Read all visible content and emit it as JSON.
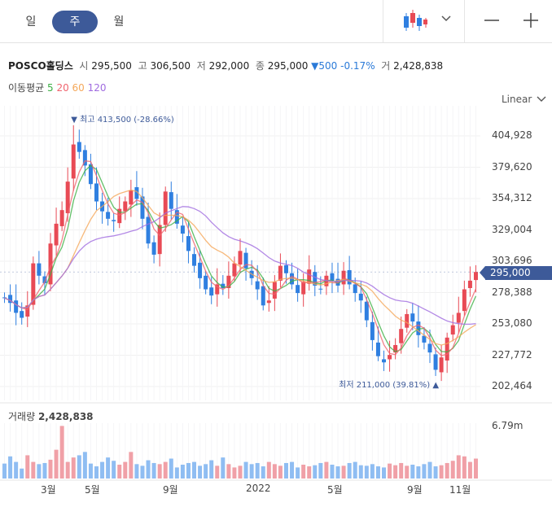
{
  "tabs": [
    {
      "label": "일",
      "active": false
    },
    {
      "label": "주",
      "active": true
    },
    {
      "label": "월",
      "active": false
    }
  ],
  "toolbar": {
    "chart_icon": "candlestick-icon",
    "dropdown_icon": "chevron-down-icon",
    "zoom_out": "−",
    "zoom_in": "+"
  },
  "stock": {
    "name": "POSCO홀딩스",
    "open_label": "시",
    "open": "295,500",
    "high_label": "고",
    "high": "306,500",
    "low_label": "저",
    "low": "292,000",
    "close_label": "종",
    "close": "295,000",
    "change_symbol": "▼",
    "change": "500",
    "change_pct": "-0.17%",
    "volume_label": "거",
    "volume": "2,428,838"
  },
  "ma": {
    "label": "이동평균",
    "periods": [
      {
        "label": "5",
        "color": "#3cb044"
      },
      {
        "label": "20",
        "color": "#f0646e"
      },
      {
        "label": "60",
        "color": "#f5a85a"
      },
      {
        "label": "120",
        "color": "#a06ce0"
      }
    ]
  },
  "scale": {
    "label": "Linear",
    "icon": "chevron-down-icon"
  },
  "colors": {
    "up": "#e84a55",
    "down": "#2f7fe0",
    "up_vol": "#f0a0a7",
    "down_vol": "#8fbdf2",
    "accent": "#3d5a99"
  },
  "chart_data": {
    "type": "candlestick",
    "x_ticks": [
      "3월",
      "5월",
      "9월",
      "2022",
      "5월",
      "9월",
      "11월"
    ],
    "y_ticks": [
      "404,928",
      "379,620",
      "354,312",
      "329,004",
      "303,696",
      "278,388",
      "253,080",
      "227,772",
      "202,464"
    ],
    "y_tick_values": [
      404928,
      379620,
      354312,
      329004,
      303696,
      278388,
      253080,
      227772,
      202464
    ],
    "ylim": [
      196000,
      420000
    ],
    "current_price": "295,000",
    "current_price_value": 295000,
    "high_annotation": {
      "symbol": "▼",
      "label": "최고",
      "value": "413,500",
      "pct": "(-28.66%)",
      "price": 413500
    },
    "low_annotation": {
      "symbol": "▲",
      "label": "최저",
      "value": "211,000",
      "pct": "(39.81%)",
      "price": 211000
    },
    "volume_label": "거래량",
    "volume_value": "2,428,838",
    "volume_axis_label": "6.79m",
    "volume_max": 6790000,
    "close_path": [
      274000,
      270000,
      262000,
      258000,
      268000,
      302000,
      292000,
      286000,
      318000,
      334000,
      345000,
      368000,
      398000,
      392000,
      381000,
      366000,
      352000,
      344000,
      338000,
      336000,
      346000,
      352000,
      361000,
      354000,
      338000,
      318000,
      309000,
      333000,
      360000,
      346000,
      334000,
      326000,
      312000,
      300000,
      290000,
      281000,
      276000,
      285000,
      282000,
      292000,
      302000,
      312000,
      298000,
      290000,
      281000,
      268000,
      272000,
      287000,
      300000,
      294000,
      285000,
      278000,
      287000,
      297000,
      284000,
      281000,
      292000,
      288000,
      284000,
      296000,
      285000,
      278000,
      272000,
      256000,
      240000,
      227000,
      222000,
      228000,
      236000,
      249000,
      261000,
      255000,
      244000,
      238000,
      230000,
      216000,
      226000,
      242000,
      252000,
      262000,
      281000,
      288000,
      295000
    ],
    "vol_path": [
      0.27,
      0.4,
      0.3,
      0.18,
      0.42,
      0.3,
      0.26,
      0.28,
      0.34,
      0.52,
      0.95,
      0.3,
      0.38,
      0.42,
      0.48,
      0.27,
      0.22,
      0.3,
      0.38,
      0.32,
      0.25,
      0.3,
      0.48,
      0.26,
      0.23,
      0.33,
      0.28,
      0.26,
      0.3,
      0.36,
      0.2,
      0.25,
      0.28,
      0.3,
      0.23,
      0.26,
      0.33,
      0.23,
      0.38,
      0.26,
      0.2,
      0.23,
      0.3,
      0.26,
      0.28,
      0.22,
      0.3,
      0.26,
      0.23,
      0.28,
      0.3,
      0.2,
      0.25,
      0.22,
      0.24,
      0.28,
      0.3,
      0.25,
      0.22,
      0.23,
      0.28,
      0.3,
      0.24,
      0.23,
      0.26,
      0.22,
      0.2,
      0.27,
      0.24,
      0.28,
      0.23,
      0.25,
      0.22,
      0.26,
      0.3,
      0.22,
      0.24,
      0.28,
      0.32,
      0.42,
      0.4,
      0.3,
      0.36
    ]
  }
}
